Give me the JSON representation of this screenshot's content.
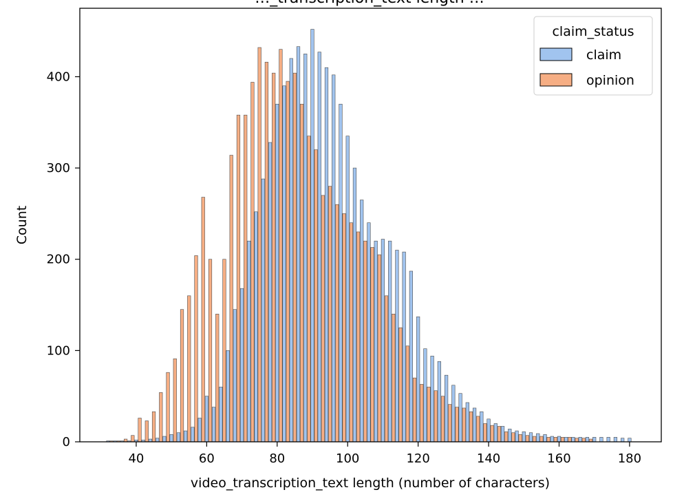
{
  "chart_data": {
    "type": "bar",
    "title": "…_transcription_text length …",
    "xlabel": "video_transcription_text length (number of characters)",
    "ylabel": "Count",
    "xlim": [
      24,
      189
    ],
    "ylim": [
      0,
      475
    ],
    "xticks": [
      40,
      60,
      80,
      100,
      120,
      140,
      160,
      180
    ],
    "yticks": [
      0,
      100,
      200,
      300,
      400
    ],
    "grid": false,
    "legend": {
      "title": "claim_status",
      "position": "top-right"
    },
    "colors": {
      "claim": "#a1c4ef",
      "opinion": "#f6ae84",
      "edge": "#4d4d4d"
    },
    "series": [
      {
        "name": "claim",
        "x": [
          32,
          34,
          36,
          38,
          40,
          42,
          44,
          46,
          48,
          50,
          52,
          54,
          56,
          58,
          60,
          62,
          64,
          66,
          68,
          70,
          72,
          74,
          76,
          78,
          80,
          82,
          84,
          86,
          88,
          90,
          92,
          94,
          96,
          98,
          100,
          102,
          104,
          106,
          108,
          110,
          112,
          114,
          116,
          118,
          120,
          122,
          124,
          126,
          128,
          130,
          132,
          134,
          136,
          138,
          140,
          142,
          144,
          146,
          148,
          150,
          152,
          154,
          156,
          158,
          160,
          162,
          164,
          166,
          168,
          170,
          172,
          174,
          176,
          178,
          180
        ],
        "values": [
          1,
          1,
          1,
          1,
          2,
          2,
          3,
          4,
          6,
          8,
          10,
          12,
          16,
          26,
          50,
          38,
          60,
          100,
          145,
          168,
          220,
          252,
          288,
          328,
          370,
          390,
          420,
          433,
          425,
          452,
          427,
          410,
          402,
          370,
          335,
          300,
          265,
          240,
          220,
          222,
          220,
          210,
          208,
          187,
          137,
          102,
          94,
          88,
          73,
          62,
          53,
          43,
          37,
          33,
          25,
          20,
          17,
          14,
          12,
          11,
          10,
          9,
          8,
          6,
          6,
          5,
          5,
          5,
          5,
          5,
          5,
          5,
          5,
          4,
          4
        ]
      },
      {
        "name": "opinion",
        "x": [
          33,
          35,
          37,
          39,
          41,
          43,
          45,
          47,
          49,
          51,
          53,
          55,
          57,
          59,
          61,
          63,
          65,
          67,
          69,
          71,
          73,
          75,
          77,
          79,
          81,
          83,
          85,
          87,
          89,
          91,
          93,
          95,
          97,
          99,
          101,
          103,
          105,
          107,
          109,
          111,
          113,
          115,
          117,
          119,
          121,
          123,
          125,
          127,
          129,
          131,
          133,
          135,
          137,
          139,
          141,
          143,
          145,
          147,
          149,
          151,
          153,
          155,
          157,
          159,
          161,
          163,
          165,
          167,
          169
        ],
        "values": [
          1,
          1,
          3,
          7,
          26,
          23,
          33,
          54,
          76,
          91,
          145,
          160,
          204,
          268,
          200,
          140,
          200,
          314,
          358,
          358,
          394,
          432,
          416,
          404,
          430,
          395,
          404,
          370,
          335,
          320,
          270,
          280,
          260,
          250,
          240,
          230,
          220,
          213,
          205,
          160,
          140,
          125,
          105,
          70,
          63,
          60,
          56,
          50,
          41,
          38,
          37,
          33,
          28,
          20,
          18,
          17,
          11,
          10,
          8,
          7,
          6,
          6,
          5,
          5,
          5,
          5,
          4,
          4,
          3
        ]
      }
    ]
  }
}
